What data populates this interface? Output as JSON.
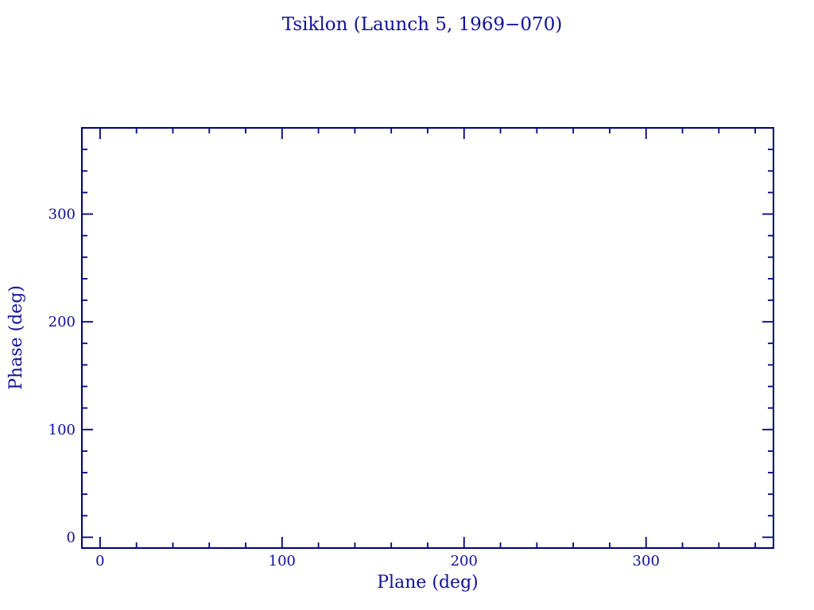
{
  "chart_data": {
    "type": "scatter",
    "title": "Tsiklon (Launch 5, 1969−070)",
    "xlabel": "Plane (deg)",
    "ylabel": "Phase (deg)",
    "xlim": [
      -10,
      370
    ],
    "ylim": [
      -10,
      380
    ],
    "x_major_ticks": [
      0,
      100,
      200,
      300
    ],
    "x_tick_labels": [
      "0",
      "100",
      "200",
      "300"
    ],
    "x_minor_step": 20,
    "y_major_ticks": [
      0,
      100,
      200,
      300
    ],
    "y_tick_labels": [
      "0",
      "100",
      "200",
      "300"
    ],
    "y_minor_step": 20,
    "grid": false,
    "legend": null,
    "series": [],
    "points": []
  },
  "colors": {
    "frame": "#000080",
    "text": "#10109a",
    "background": "#ffffff"
  }
}
